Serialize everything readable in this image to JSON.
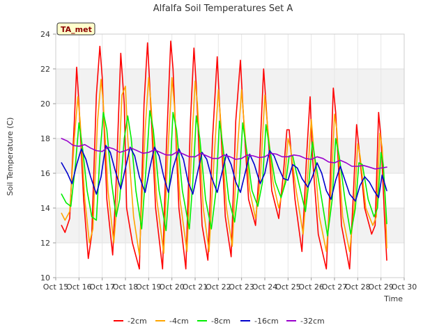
{
  "chart_data": {
    "type": "line",
    "title": "Alfalfa Soil Temperatures Set A",
    "xlabel": "Time",
    "ylabel": "Soil Temperature (C)",
    "badge": "TA_met",
    "xlim": [
      15,
      30
    ],
    "ylim": [
      10,
      24
    ],
    "x_ticks": [
      15,
      16,
      17,
      18,
      19,
      20,
      21,
      22,
      23,
      24,
      25,
      26,
      27,
      28,
      29,
      30
    ],
    "x_tick_labels": [
      "Oct 15",
      "Oct 16",
      "Oct 17",
      "Oct 18",
      "Oct 19",
      "Oct 20",
      "Oct 21",
      "Oct 22",
      "Oct 23",
      "Oct 24",
      "Oct 25",
      "Oct 26",
      "Oct 27",
      "Oct 28",
      "Oct 29",
      "Oct 30"
    ],
    "y_ticks": [
      10,
      12,
      14,
      16,
      18,
      20,
      22,
      24
    ],
    "y_tick_labels": [
      "10",
      "12",
      "14",
      "16",
      "18",
      "20",
      "22",
      "24"
    ],
    "band_color": "#f2f2f2",
    "grid": true,
    "legend_position": "bottom",
    "series": [
      {
        "name": "-2cm",
        "color": "#ff0000",
        "x": [
          15.25,
          15.4,
          15.6,
          15.8,
          15.9,
          16.0,
          16.2,
          16.4,
          16.55,
          16.75,
          16.9,
          17.0,
          17.2,
          17.45,
          17.6,
          17.8,
          17.95,
          18.05,
          18.3,
          18.6,
          18.8,
          18.95,
          19.05,
          19.3,
          19.6,
          19.75,
          19.95,
          20.05,
          20.3,
          20.6,
          20.8,
          20.95,
          21.05,
          21.3,
          21.55,
          21.75,
          21.95,
          22.05,
          22.3,
          22.55,
          22.75,
          22.95,
          23.05,
          23.3,
          23.6,
          23.75,
          23.95,
          24.05,
          24.3,
          24.6,
          24.8,
          24.95,
          25.05,
          25.3,
          25.6,
          25.8,
          25.95,
          26.05,
          26.3,
          26.65,
          26.8,
          26.95,
          27.05,
          27.3,
          27.65,
          27.8,
          27.95,
          28.05,
          28.3,
          28.6,
          28.75,
          28.9,
          29.0,
          29.15,
          29.25
        ],
        "y": [
          13.0,
          12.6,
          13.4,
          19.0,
          22.1,
          20.0,
          14.5,
          11.1,
          12.5,
          20.5,
          23.3,
          21.5,
          14.5,
          11.3,
          15.5,
          22.9,
          20.0,
          14.0,
          12.0,
          10.5,
          20.0,
          23.5,
          21.0,
          14.0,
          10.5,
          17.0,
          23.6,
          22.0,
          14.0,
          10.5,
          19.0,
          23.2,
          21.0,
          13.0,
          11.0,
          18.0,
          22.7,
          20.0,
          13.5,
          11.2,
          19.0,
          22.5,
          20.0,
          14.5,
          13.0,
          16.0,
          22.0,
          20.0,
          15.0,
          13.4,
          16.0,
          18.5,
          18.5,
          14.5,
          11.5,
          17.0,
          20.4,
          17.0,
          12.5,
          10.5,
          15.0,
          20.9,
          19.5,
          13.0,
          10.5,
          14.5,
          18.8,
          17.5,
          14.0,
          12.5,
          13.0,
          19.5,
          18.0,
          13.5,
          11.0
        ]
      },
      {
        "name": "-4cm",
        "color": "#ffa500",
        "x": [
          15.25,
          15.4,
          15.6,
          15.8,
          15.95,
          16.05,
          16.25,
          16.45,
          16.6,
          16.8,
          16.95,
          17.05,
          17.25,
          17.5,
          17.65,
          17.85,
          18.0,
          18.1,
          18.35,
          18.6,
          18.85,
          19.0,
          19.1,
          19.35,
          19.65,
          19.8,
          20.0,
          20.1,
          20.35,
          20.65,
          20.85,
          21.0,
          21.1,
          21.35,
          21.6,
          21.8,
          22.0,
          22.1,
          22.35,
          22.6,
          22.8,
          23.0,
          23.1,
          23.35,
          23.6,
          23.8,
          24.0,
          24.1,
          24.35,
          24.6,
          24.85,
          25.0,
          25.1,
          25.35,
          25.65,
          25.85,
          26.0,
          26.1,
          26.35,
          26.65,
          26.85,
          27.0,
          27.1,
          27.35,
          27.65,
          27.85,
          28.0,
          28.1,
          28.35,
          28.65,
          28.8,
          28.95,
          29.05,
          29.2,
          29.25
        ],
        "y": [
          13.7,
          13.3,
          13.8,
          18.0,
          20.4,
          19.0,
          14.5,
          12.0,
          12.8,
          19.0,
          21.4,
          20.0,
          15.0,
          12.0,
          14.5,
          20.5,
          21.0,
          18.0,
          13.5,
          11.3,
          18.5,
          21.5,
          20.0,
          14.5,
          11.4,
          16.5,
          21.5,
          20.0,
          14.5,
          11.5,
          17.5,
          21.3,
          20.0,
          14.0,
          11.5,
          16.5,
          20.8,
          19.0,
          14.0,
          11.8,
          17.0,
          20.8,
          19.0,
          15.0,
          13.4,
          15.5,
          20.5,
          19.0,
          15.5,
          14.0,
          15.5,
          18.0,
          17.5,
          15.0,
          12.5,
          16.0,
          19.1,
          17.5,
          13.5,
          11.5,
          15.0,
          19.4,
          18.5,
          13.5,
          11.5,
          14.0,
          17.7,
          17.0,
          14.0,
          13.0,
          13.5,
          18.3,
          17.5,
          14.0,
          11.7
        ]
      },
      {
        "name": "-8cm",
        "color": "#00ee00",
        "x": [
          15.25,
          15.45,
          15.65,
          15.85,
          16.0,
          16.15,
          16.35,
          16.55,
          16.75,
          16.9,
          17.05,
          17.2,
          17.4,
          17.6,
          17.75,
          17.95,
          18.1,
          18.25,
          18.45,
          18.7,
          18.9,
          19.05,
          19.2,
          19.45,
          19.75,
          19.9,
          20.05,
          20.2,
          20.45,
          20.75,
          20.9,
          21.05,
          21.2,
          21.45,
          21.7,
          21.9,
          22.05,
          22.2,
          22.45,
          22.7,
          22.9,
          23.05,
          23.2,
          23.45,
          23.7,
          23.9,
          24.05,
          24.2,
          24.45,
          24.7,
          24.9,
          25.05,
          25.2,
          25.45,
          25.75,
          25.9,
          26.05,
          26.2,
          26.45,
          26.7,
          26.9,
          27.05,
          27.2,
          27.45,
          27.7,
          27.9,
          28.05,
          28.2,
          28.45,
          28.7,
          28.85,
          29.0,
          29.1,
          29.25
        ],
        "y": [
          14.8,
          14.3,
          14.1,
          16.5,
          18.9,
          17.5,
          15.0,
          13.5,
          13.3,
          17.0,
          19.5,
          18.5,
          15.5,
          13.5,
          14.5,
          18.0,
          19.3,
          18.0,
          15.0,
          12.8,
          16.5,
          19.6,
          18.5,
          15.0,
          12.7,
          15.5,
          19.5,
          18.5,
          15.0,
          12.8,
          15.5,
          19.3,
          18.0,
          14.5,
          12.8,
          15.0,
          19.0,
          17.5,
          14.5,
          13.2,
          15.5,
          18.9,
          17.5,
          15.0,
          14.1,
          15.5,
          18.8,
          17.5,
          15.5,
          14.6,
          15.5,
          17.0,
          17.0,
          15.5,
          13.8,
          15.5,
          17.8,
          16.5,
          14.5,
          12.4,
          14.5,
          18.0,
          17.0,
          14.5,
          12.5,
          14.0,
          16.6,
          16.5,
          14.5,
          13.5,
          14.0,
          17.2,
          16.5,
          13.1
        ]
      },
      {
        "name": "-16cm",
        "color": "#0000cc",
        "x": [
          15.25,
          15.5,
          15.7,
          15.9,
          16.1,
          16.3,
          16.5,
          16.75,
          16.95,
          17.15,
          17.35,
          17.55,
          17.8,
          18.0,
          18.2,
          18.4,
          18.6,
          18.85,
          19.05,
          19.25,
          19.45,
          19.65,
          19.85,
          20.05,
          20.3,
          20.5,
          20.7,
          20.9,
          21.1,
          21.3,
          21.5,
          21.7,
          21.95,
          22.15,
          22.35,
          22.55,
          22.75,
          22.95,
          23.15,
          23.35,
          23.55,
          23.8,
          24.0,
          24.2,
          24.4,
          24.6,
          24.8,
          25.0,
          25.2,
          25.4,
          25.6,
          25.85,
          26.05,
          26.25,
          26.45,
          26.65,
          26.85,
          27.05,
          27.25,
          27.45,
          27.65,
          27.9,
          28.1,
          28.3,
          28.5,
          28.7,
          28.9,
          29.05,
          29.25
        ],
        "y": [
          16.6,
          16.0,
          15.4,
          16.5,
          17.4,
          16.8,
          15.8,
          14.8,
          15.8,
          17.6,
          17.2,
          16.2,
          15.1,
          16.3,
          17.5,
          17.0,
          15.8,
          14.9,
          16.3,
          17.5,
          17.0,
          15.8,
          14.9,
          16.3,
          17.4,
          16.8,
          15.5,
          14.8,
          16.0,
          17.2,
          16.8,
          15.8,
          14.9,
          16.0,
          17.1,
          16.5,
          15.5,
          14.9,
          16.0,
          17.1,
          16.5,
          15.4,
          16.0,
          17.3,
          17.0,
          16.3,
          15.7,
          15.6,
          16.5,
          16.3,
          15.7,
          15.2,
          15.8,
          16.6,
          16.0,
          15.0,
          14.5,
          15.6,
          16.4,
          15.6,
          14.8,
          14.4,
          15.3,
          15.8,
          15.5,
          15.0,
          14.6,
          15.9,
          15.0
        ]
      },
      {
        "name": "-32cm",
        "color": "#9900cc",
        "x": [
          15.25,
          15.5,
          15.75,
          16.0,
          16.25,
          16.5,
          16.75,
          17.0,
          17.25,
          17.5,
          17.75,
          18.0,
          18.25,
          18.5,
          18.75,
          19.0,
          19.25,
          19.5,
          19.75,
          20.0,
          20.25,
          20.5,
          20.75,
          21.0,
          21.25,
          21.5,
          21.75,
          22.0,
          22.25,
          22.5,
          22.75,
          23.0,
          23.25,
          23.5,
          23.75,
          24.0,
          24.25,
          24.5,
          24.75,
          25.0,
          25.25,
          25.5,
          25.75,
          26.0,
          26.25,
          26.5,
          26.75,
          27.0,
          27.25,
          27.5,
          27.75,
          28.0,
          28.25,
          28.5,
          28.75,
          29.0,
          29.25
        ],
        "y": [
          18.0,
          17.85,
          17.6,
          17.55,
          17.65,
          17.45,
          17.3,
          17.25,
          17.5,
          17.4,
          17.2,
          17.3,
          17.45,
          17.3,
          17.15,
          17.2,
          17.35,
          17.2,
          17.05,
          17.05,
          17.25,
          17.1,
          16.95,
          16.95,
          17.15,
          17.0,
          16.85,
          16.85,
          17.05,
          16.95,
          16.8,
          16.85,
          17.05,
          17.0,
          16.9,
          16.95,
          17.15,
          17.1,
          16.95,
          16.95,
          17.05,
          17.0,
          16.85,
          16.8,
          16.95,
          16.85,
          16.65,
          16.6,
          16.75,
          16.6,
          16.4,
          16.4,
          16.45,
          16.35,
          16.25,
          16.3,
          16.35
        ]
      }
    ]
  }
}
